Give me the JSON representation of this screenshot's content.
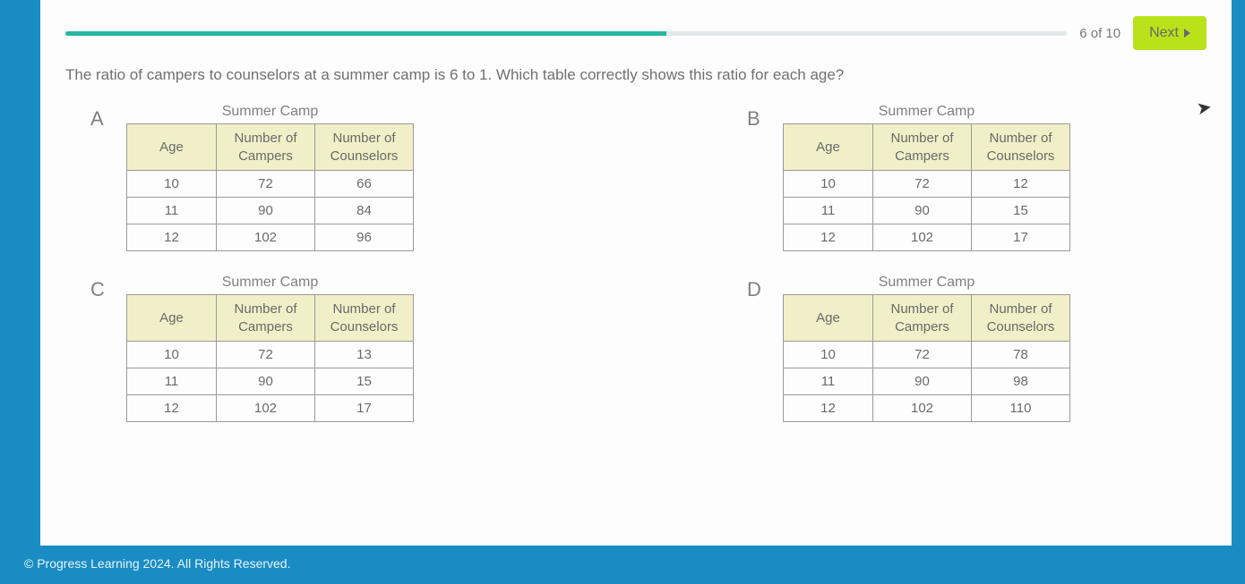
{
  "progress": {
    "counter": "6 of 10",
    "fill_pct": 60
  },
  "next_label": "Next",
  "question": "The ratio of campers to counselors at a summer camp is 6 to 1. Which table correctly shows this ratio for each age?",
  "columns": {
    "age": "Age",
    "campers_l1": "Number of",
    "campers_l2": "Campers",
    "counselors_l1": "Number of",
    "counselors_l2": "Counselors"
  },
  "table_title": "Summer Camp",
  "options": {
    "A": {
      "letter": "A",
      "rows": [
        [
          "10",
          "72",
          "66"
        ],
        [
          "11",
          "90",
          "84"
        ],
        [
          "12",
          "102",
          "96"
        ]
      ]
    },
    "B": {
      "letter": "B",
      "rows": [
        [
          "10",
          "72",
          "12"
        ],
        [
          "11",
          "90",
          "15"
        ],
        [
          "12",
          "102",
          "17"
        ]
      ]
    },
    "C": {
      "letter": "C",
      "rows": [
        [
          "10",
          "72",
          "13"
        ],
        [
          "11",
          "90",
          "15"
        ],
        [
          "12",
          "102",
          "17"
        ]
      ]
    },
    "D": {
      "letter": "D",
      "rows": [
        [
          "10",
          "72",
          "78"
        ],
        [
          "11",
          "90",
          "98"
        ],
        [
          "12",
          "102",
          "110"
        ]
      ]
    }
  },
  "footer": "© Progress Learning 2024. All Rights Reserved.",
  "colors": {
    "page_bg": "#fdfdfd",
    "outer_bg": "#1a8cc4",
    "progress_fill": "#29b6a0",
    "progress_track": "#e4e9ea",
    "next_bg": "#b9e21a",
    "header_cell_bg": "#f1efc7",
    "border": "#9a9a9a",
    "text": "#6a6a6a"
  }
}
